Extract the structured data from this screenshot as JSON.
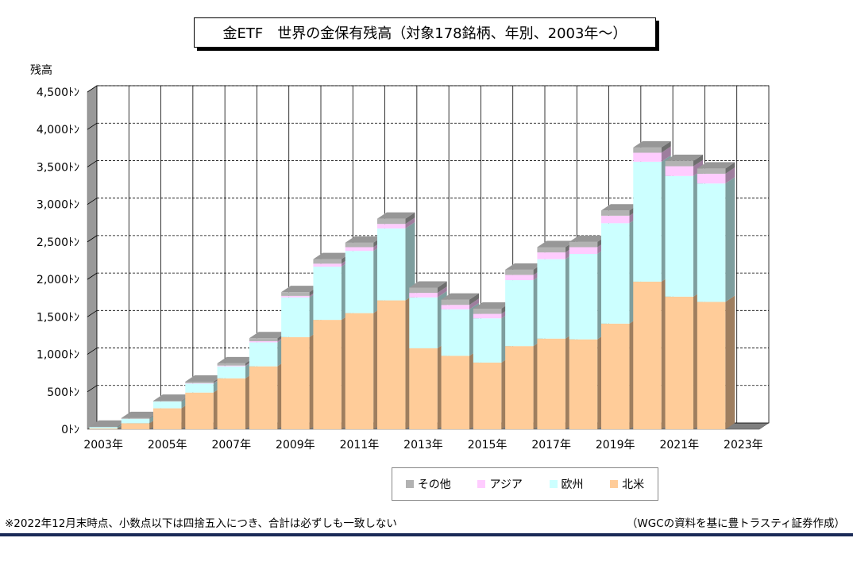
{
  "chart_data": {
    "type": "bar",
    "stacked": true,
    "title": "金ETF　世界の金保有残高（対象178銘柄、年別、2003年～）",
    "ylabel": "残高",
    "ylim": [
      0,
      4500
    ],
    "y_ticks": [
      "0ﾄﾝ",
      "500ﾄﾝ",
      "1,000ﾄﾝ",
      "1,500ﾄﾝ",
      "2,000ﾄﾝ",
      "2,500ﾄﾝ",
      "3,000ﾄﾝ",
      "3,500ﾄﾝ",
      "4,000ﾄﾝ",
      "4,500ﾄﾝ"
    ],
    "y_tick_values": [
      0,
      500,
      1000,
      1500,
      2000,
      2500,
      3000,
      3500,
      4000,
      4500
    ],
    "categories": [
      "2003年",
      "2004年",
      "2005年",
      "2006年",
      "2007年",
      "2008年",
      "2009年",
      "2010年",
      "2011年",
      "2012年",
      "2013年",
      "2014年",
      "2015年",
      "2016年",
      "2017年",
      "2018年",
      "2019年",
      "2020年",
      "2021年",
      "2022年",
      "2023年"
    ],
    "x_tick_labels": [
      "2003年",
      "2005年",
      "2007年",
      "2009年",
      "2011年",
      "2013年",
      "2015年",
      "2017年",
      "2019年",
      "2021年",
      "2023年"
    ],
    "series": [
      {
        "name": "北米",
        "color": "#ffcc99",
        "values": [
          10,
          80,
          280,
          490,
          680,
          840,
          1230,
          1460,
          1550,
          1720,
          1080,
          980,
          890,
          1110,
          1210,
          1200,
          1410,
          1970,
          1770,
          1700,
          0
        ]
      },
      {
        "name": "欧州",
        "color": "#ccffff",
        "values": [
          20,
          60,
          90,
          120,
          160,
          320,
          530,
          710,
          830,
          960,
          680,
          620,
          590,
          880,
          1060,
          1140,
          1340,
          1600,
          1610,
          1580,
          0
        ]
      },
      {
        "name": "アジア",
        "color": "#ffccff",
        "values": [
          0,
          0,
          0,
          5,
          10,
          15,
          20,
          40,
          50,
          60,
          60,
          60,
          60,
          70,
          90,
          90,
          100,
          120,
          130,
          130,
          0
        ]
      },
      {
        "name": "その他",
        "color": "#b2b2b2",
        "values": [
          5,
          10,
          10,
          20,
          30,
          40,
          50,
          60,
          60,
          70,
          70,
          70,
          70,
          70,
          70,
          70,
          70,
          70,
          70,
          70,
          0
        ]
      }
    ],
    "legend": [
      "その他",
      "アジア",
      "欧州",
      "北米"
    ],
    "legend_position": "bottom",
    "grid": true
  },
  "footnote": "※2022年12月末時点、小数点以下は四捨五入につき、合計は必ずしも一致しない",
  "source": "（WGCの資料を基に豊トラスティ証券作成）"
}
